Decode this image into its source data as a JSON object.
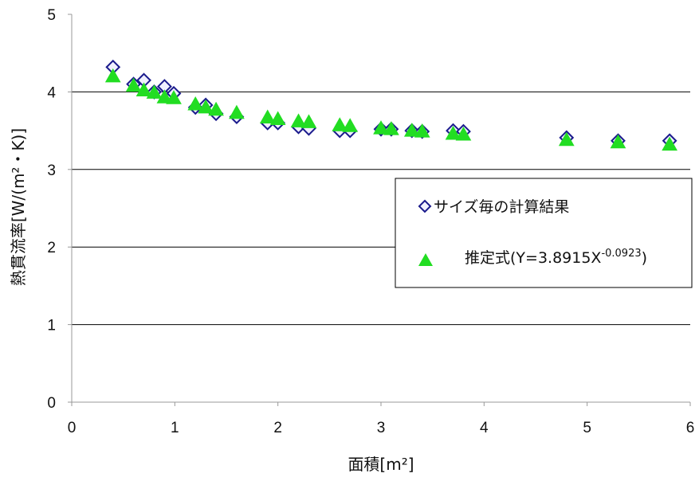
{
  "chart_data": {
    "type": "scatter",
    "xlabel": "面積[m²]",
    "ylabel": "熱貫流率[W/(m²・K)]",
    "xlim": [
      0,
      6
    ],
    "ylim": [
      0,
      5
    ],
    "x_ticks": [
      "0",
      "1",
      "2",
      "3",
      "4",
      "5",
      "6"
    ],
    "y_ticks": [
      "0",
      "1",
      "2",
      "3",
      "4",
      "5"
    ],
    "grid": "horizontal",
    "legend_position": "center-right",
    "series": [
      {
        "name": "サイズ毎の計算結果",
        "marker": "diamond",
        "color": "#1a1a8c",
        "points": [
          [
            0.4,
            4.32
          ],
          [
            0.6,
            4.1
          ],
          [
            0.7,
            4.15
          ],
          [
            0.8,
            4.0
          ],
          [
            0.9,
            4.07
          ],
          [
            0.99,
            3.98
          ],
          [
            1.2,
            3.8
          ],
          [
            1.3,
            3.83
          ],
          [
            1.4,
            3.72
          ],
          [
            1.6,
            3.68
          ],
          [
            1.9,
            3.6
          ],
          [
            2.0,
            3.6
          ],
          [
            2.2,
            3.55
          ],
          [
            2.3,
            3.53
          ],
          [
            2.6,
            3.5
          ],
          [
            2.7,
            3.5
          ],
          [
            3.0,
            3.52
          ],
          [
            3.1,
            3.52
          ],
          [
            3.3,
            3.5
          ],
          [
            3.4,
            3.49
          ],
          [
            3.7,
            3.5
          ],
          [
            3.8,
            3.49
          ],
          [
            4.8,
            3.41
          ],
          [
            5.3,
            3.37
          ],
          [
            5.8,
            3.37
          ]
        ]
      },
      {
        "name": "推定式(Y=3.8915X",
        "name_superscript": "-0.0923",
        "name_suffix": ")",
        "marker": "triangle",
        "color": "#22dd22",
        "points": [
          [
            0.4,
            4.2
          ],
          [
            0.6,
            4.08
          ],
          [
            0.7,
            4.02
          ],
          [
            0.8,
            3.99
          ],
          [
            0.9,
            3.93
          ],
          [
            0.99,
            3.92
          ],
          [
            1.2,
            3.84
          ],
          [
            1.3,
            3.8
          ],
          [
            1.4,
            3.77
          ],
          [
            1.6,
            3.73
          ],
          [
            1.9,
            3.67
          ],
          [
            2.0,
            3.65
          ],
          [
            2.2,
            3.62
          ],
          [
            2.3,
            3.61
          ],
          [
            2.6,
            3.57
          ],
          [
            2.7,
            3.56
          ],
          [
            3.0,
            3.53
          ],
          [
            3.1,
            3.52
          ],
          [
            3.3,
            3.5
          ],
          [
            3.4,
            3.49
          ],
          [
            3.7,
            3.46
          ],
          [
            3.8,
            3.45
          ],
          [
            4.8,
            3.38
          ],
          [
            5.3,
            3.35
          ],
          [
            5.8,
            3.32
          ]
        ]
      }
    ]
  },
  "colors": {
    "gridline": "#000000",
    "axis": "#999999",
    "diamond_fill": "#f0f0ff"
  }
}
